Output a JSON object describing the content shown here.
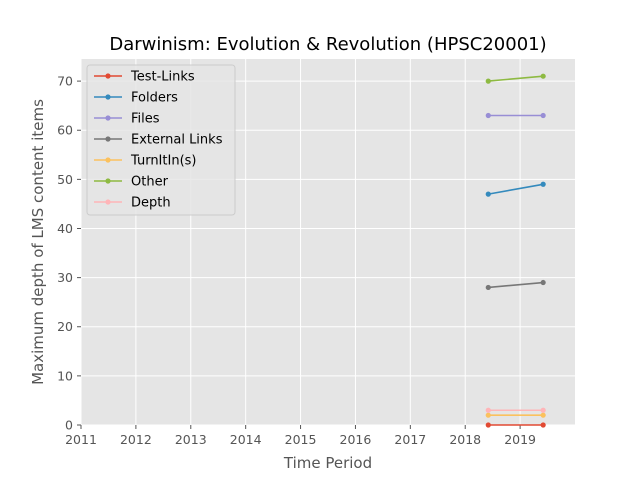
{
  "chart_data": {
    "type": "line",
    "title": "Darwinism: Evolution & Revolution (HPSC20001)",
    "xlabel": "Time Period",
    "ylabel": "Maximum depth of LMS content items",
    "xlim": [
      2011,
      2020.0
    ],
    "ylim": [
      0,
      74.5
    ],
    "xticks": [
      2011,
      2012,
      2013,
      2014,
      2015,
      2016,
      2017,
      2018,
      2019
    ],
    "yticks": [
      0,
      10,
      20,
      30,
      40,
      50,
      60,
      70
    ],
    "x": [
      2018.42,
      2019.42
    ],
    "grid": true,
    "legend_position": "top-left",
    "series": [
      {
        "name": "Test-Links",
        "color": "#E24A33",
        "values": [
          0,
          0
        ]
      },
      {
        "name": "Folders",
        "color": "#348ABD",
        "values": [
          47,
          49
        ]
      },
      {
        "name": "Files",
        "color": "#988ED5",
        "values": [
          63,
          63
        ]
      },
      {
        "name": "External Links",
        "color": "#777777",
        "values": [
          28,
          29
        ]
      },
      {
        "name": "TurnItIn(s)",
        "color": "#FBC15E",
        "values": [
          2,
          2
        ]
      },
      {
        "name": "Other",
        "color": "#8EBA42",
        "values": [
          70,
          71
        ]
      },
      {
        "name": "Depth",
        "color": "#FFB5B8",
        "values": [
          3,
          3
        ]
      }
    ]
  }
}
